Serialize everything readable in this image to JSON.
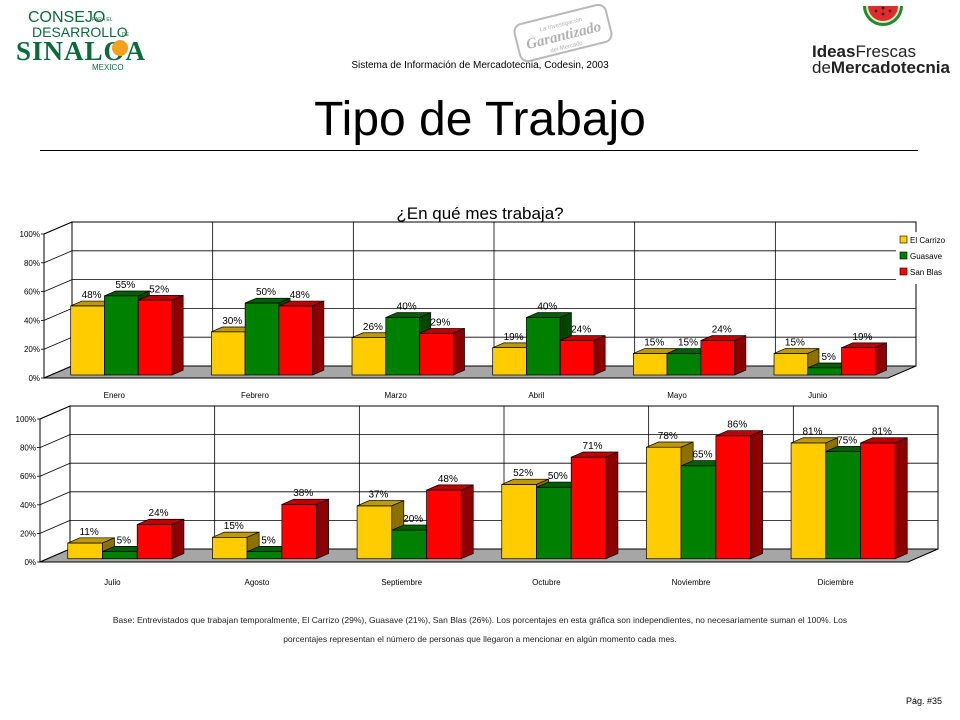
{
  "header": {
    "logo_left": {
      "line1": "CONSEJO",
      "line1_small": "PARA EL",
      "line2": "DESARROLLO",
      "line2_small": "DE",
      "line3": "SINALOA",
      "line4": "MEXICO"
    },
    "stamp": {
      "top": "La Investigación",
      "main": "Garantizado",
      "bottom": "del Mercado"
    },
    "logo_right": {
      "line1a": "Ideas",
      "line1b": "Frescas",
      "line2a": "de",
      "line2b": "Mercadotecnia"
    },
    "subtitle": "Sistema de Información de Mercadotecnia, Codesin, 2003"
  },
  "page_title": "Tipo de Trabajo",
  "chart_data": [
    {
      "type": "bar",
      "title": "¿En qué mes trabaja?",
      "categories": [
        "Enero",
        "Febrero",
        "Marzo",
        "Abril",
        "Mayo",
        "Junio"
      ],
      "series": [
        {
          "name": "El Carrizo",
          "color": "#FFCC00",
          "values": [
            48,
            30,
            26,
            19,
            15,
            15
          ]
        },
        {
          "name": "Guasave",
          "color": "#008000",
          "values": [
            55,
            50,
            40,
            40,
            15,
            5
          ]
        },
        {
          "name": "San Blas",
          "color": "#FF0000",
          "values": [
            52,
            48,
            29,
            24,
            24,
            19
          ]
        }
      ],
      "ylim": [
        0,
        100
      ],
      "yticks": [
        "0%",
        "20%",
        "40%",
        "60%",
        "80%",
        "100%"
      ],
      "legend": "right",
      "grid": true
    },
    {
      "type": "bar",
      "title": "",
      "categories": [
        "Julio",
        "Agosto",
        "Septiembre",
        "Octubre",
        "Noviembre",
        "Diciembre"
      ],
      "series": [
        {
          "name": "El Carrizo",
          "color": "#FFCC00",
          "values": [
            11,
            15,
            37,
            52,
            78,
            81
          ]
        },
        {
          "name": "Guasave",
          "color": "#008000",
          "values": [
            5,
            5,
            20,
            50,
            65,
            75
          ]
        },
        {
          "name": "San Blas",
          "color": "#FF0000",
          "values": [
            24,
            38,
            48,
            71,
            86,
            81
          ]
        }
      ],
      "ylim": [
        0,
        100
      ],
      "yticks": [
        "0%",
        "20%",
        "40%",
        "60%",
        "80%",
        "100%"
      ],
      "legend": "none",
      "grid": true
    }
  ],
  "footnote": {
    "line1": "Base: Entrevistados que trabajan temporalmente, El Carrizo (29%), Guasave (21%), San Blas (26%). Los porcentajes en esta gráfica son independientes, no necesariamente suman el 100%. Los",
    "line2": "porcentajes representan el número de personas que llegaron a mencionar en algún momento cada mes."
  },
  "page_number": "Pág. #35"
}
